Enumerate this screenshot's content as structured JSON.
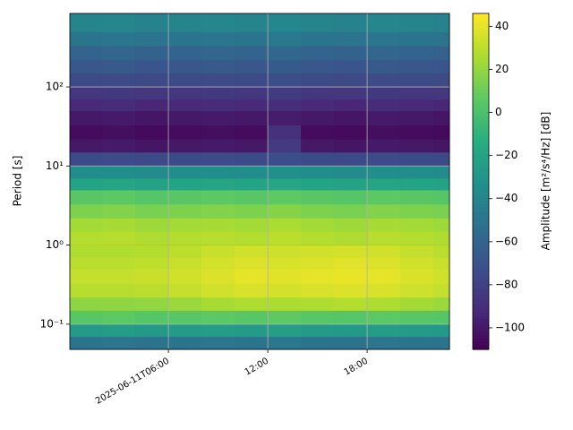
{
  "chart_data": {
    "type": "heatmap",
    "ylabel": "Period [s]",
    "colorbar_label": "Amplitude [m²/s⁴/Hz] [dB]",
    "cmap": "viridis",
    "x_edges": [
      0,
      2,
      4,
      6,
      8,
      10,
      12,
      14,
      16,
      18,
      20,
      22,
      23
    ],
    "y_edges": [
      0.048,
      0.07,
      0.1,
      0.15,
      0.22,
      0.33,
      0.5,
      0.7,
      1,
      1.5,
      2.2,
      3.3,
      5,
      7,
      10,
      15,
      22,
      33,
      50,
      70,
      100,
      150,
      220,
      330,
      500,
      850
    ],
    "z": [
      [
        -50,
        -49,
        -51,
        -50,
        -49,
        -50,
        -48,
        -50,
        -51,
        -49,
        -50,
        -51
      ],
      [
        -25,
        -24,
        -26,
        -25,
        -24,
        -25,
        -23,
        -25,
        -26,
        -24,
        -25,
        -26
      ],
      [
        5,
        6,
        4,
        5,
        6,
        5,
        7,
        5,
        4,
        6,
        5,
        4
      ],
      [
        19,
        19,
        20,
        22,
        25,
        27,
        26,
        27,
        28,
        27,
        24,
        22
      ],
      [
        29,
        29,
        30,
        32,
        35,
        37,
        36,
        37,
        38,
        37,
        34,
        32
      ],
      [
        32,
        32,
        33,
        35,
        38,
        40,
        39,
        40,
        41,
        40,
        37,
        35
      ],
      [
        30,
        30,
        31,
        33,
        36,
        38,
        37,
        38,
        39,
        38,
        35,
        33
      ],
      [
        27,
        27,
        28,
        30,
        33,
        35,
        34,
        35,
        36,
        35,
        32,
        30
      ],
      [
        28,
        29,
        27,
        28,
        29,
        28,
        30,
        28,
        27,
        29,
        28,
        27
      ],
      [
        24,
        25,
        23,
        24,
        25,
        24,
        26,
        24,
        23,
        25,
        24,
        23
      ],
      [
        15,
        16,
        14,
        15,
        16,
        15,
        17,
        15,
        14,
        16,
        15,
        14
      ],
      [
        5,
        6,
        4,
        5,
        6,
        5,
        7,
        5,
        4,
        6,
        5,
        4
      ],
      [
        -20,
        -19,
        -21,
        -20,
        -19,
        -20,
        -18,
        -20,
        -21,
        -19,
        -20,
        -21
      ],
      [
        -35,
        -34,
        -36,
        -35,
        -34,
        -35,
        -33,
        -35,
        -36,
        -34,
        -35,
        -36
      ],
      [
        -75,
        -74,
        -76,
        -75,
        -74,
        -75,
        -73,
        -75,
        -76,
        -74,
        -75,
        -76
      ],
      [
        -100,
        -99,
        -101,
        -100,
        -99,
        -100,
        -83,
        -100,
        -101,
        -99,
        -100,
        -101
      ],
      [
        -105,
        -104,
        -106,
        -105,
        -104,
        -105,
        -88,
        -105,
        -106,
        -104,
        -105,
        -106
      ],
      [
        -100,
        -99,
        -101,
        -100,
        -99,
        -100,
        -98,
        -100,
        -101,
        -99,
        -100,
        -101
      ],
      [
        -92,
        -91,
        -93,
        -92,
        -91,
        -92,
        -90,
        -92,
        -93,
        -91,
        -92,
        -93
      ],
      [
        -85,
        -84,
        -86,
        -85,
        -84,
        -85,
        -83,
        -85,
        -86,
        -84,
        -85,
        -86
      ],
      [
        -75,
        -74,
        -76,
        -75,
        -74,
        -75,
        -73,
        -75,
        -76,
        -74,
        -75,
        -76
      ],
      [
        -68,
        -67,
        -69,
        -68,
        -67,
        -68,
        -66,
        -68,
        -69,
        -67,
        -68,
        -69
      ],
      [
        -60,
        -59,
        -61,
        -60,
        -59,
        -60,
        -58,
        -60,
        -61,
        -59,
        -60,
        -61
      ],
      [
        -50,
        -49,
        -51,
        -50,
        -49,
        -50,
        -48,
        -50,
        -51,
        -49,
        -50,
        -51
      ],
      [
        -40,
        -39,
        -41,
        -40,
        -39,
        -40,
        -38,
        -40,
        -41,
        -39,
        -40,
        -41
      ]
    ],
    "xlim": [
      0.05,
      22.97
    ],
    "ylim": [
      0.048,
      850
    ],
    "yscale": "log",
    "clim": [
      -110,
      46
    ],
    "xticks": [
      {
        "value": 6,
        "label": "2025-06-11T06:00"
      },
      {
        "value": 12,
        "label": "12:00"
      },
      {
        "value": 18,
        "label": "18:00"
      }
    ],
    "yticks": [
      {
        "value": 0.1,
        "label": "10⁻¹"
      },
      {
        "value": 1,
        "label": "10⁰"
      },
      {
        "value": 10,
        "label": "10¹"
      },
      {
        "value": 100,
        "label": "10²"
      }
    ],
    "cticks": [
      {
        "value": -100,
        "label": "−100"
      },
      {
        "value": -80,
        "label": "−80"
      },
      {
        "value": -60,
        "label": "−60"
      },
      {
        "value": -40,
        "label": "−40"
      },
      {
        "value": -20,
        "label": "−20"
      },
      0,
      20,
      40
    ],
    "grid": true
  }
}
